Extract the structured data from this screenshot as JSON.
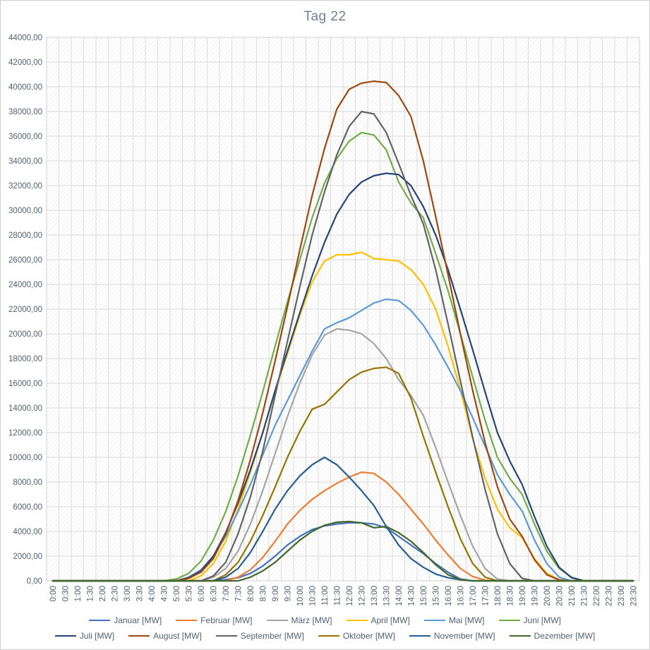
{
  "chart": {
    "title_label": "Tag 22"
  },
  "chart_data": {
    "type": "line",
    "title": "Tag 22",
    "xlabel": "",
    "ylabel": "",
    "ylim": [
      0,
      44000
    ],
    "ytick_step": 2000,
    "grid": true,
    "legend_position": "bottom",
    "yticks": [
      "0,00",
      "2000,00",
      "4000,00",
      "6000,00",
      "8000,00",
      "10000,00",
      "12000,00",
      "14000,00",
      "16000,00",
      "18000,00",
      "20000,00",
      "22000,00",
      "24000,00",
      "26000,00",
      "28000,00",
      "30000,00",
      "32000,00",
      "34000,00",
      "36000,00",
      "38000,00",
      "40000,00",
      "42000,00",
      "44000,00"
    ],
    "x": [
      "0:00",
      "0:30",
      "1:00",
      "1:30",
      "2:00",
      "2:30",
      "3:00",
      "3:30",
      "4:00",
      "4:30",
      "5:00",
      "5:30",
      "6:00",
      "6:30",
      "7:00",
      "7:30",
      "8:00",
      "8:30",
      "9:00",
      "9:30",
      "10:00",
      "10:30",
      "11:00",
      "11:30",
      "12:00",
      "12:30",
      "13:00",
      "13:30",
      "14:00",
      "14:30",
      "15:00",
      "15:30",
      "16:00",
      "16:30",
      "17:00",
      "17:30",
      "18:00",
      "18:30",
      "19:00",
      "19:30",
      "20:00",
      "20:30",
      "21:00",
      "21:30",
      "22:00",
      "22:30",
      "23:00",
      "23:30"
    ],
    "series": [
      {
        "name": "Januar [MW]",
        "color": "#4472C4",
        "values": [
          0,
          0,
          0,
          0,
          0,
          0,
          0,
          0,
          0,
          0,
          0,
          0,
          0,
          0,
          100,
          250,
          600,
          1200,
          2000,
          2900,
          3600,
          4150,
          4450,
          4600,
          4700,
          4700,
          4600,
          4300,
          3600,
          2900,
          2200,
          1400,
          700,
          150,
          0,
          0,
          0,
          0,
          0,
          0,
          0,
          0,
          0,
          0,
          0,
          0,
          0,
          0
        ]
      },
      {
        "name": "Februar [MW]",
        "color": "#ED7D31",
        "values": [
          0,
          0,
          0,
          0,
          0,
          0,
          0,
          0,
          0,
          0,
          0,
          0,
          0,
          0,
          0,
          300,
          900,
          1900,
          3200,
          4600,
          5700,
          6600,
          7300,
          7900,
          8400,
          8800,
          8700,
          8000,
          7000,
          5800,
          4600,
          3300,
          2100,
          1000,
          350,
          50,
          0,
          0,
          0,
          0,
          0,
          0,
          0,
          0,
          0,
          0,
          0,
          0
        ]
      },
      {
        "name": "März [MW]",
        "color": "#A5A5A5",
        "values": [
          0,
          0,
          0,
          0,
          0,
          0,
          0,
          0,
          0,
          0,
          0,
          0,
          0,
          300,
          1000,
          2400,
          4600,
          7300,
          10300,
          13300,
          16000,
          18300,
          19900,
          20400,
          20300,
          20000,
          19200,
          18000,
          16300,
          15000,
          13400,
          10800,
          8000,
          5300,
          2800,
          1000,
          150,
          0,
          0,
          0,
          0,
          0,
          0,
          0,
          0,
          0,
          0,
          0
        ]
      },
      {
        "name": "April [MW]",
        "color": "#FFC000",
        "values": [
          0,
          0,
          0,
          0,
          0,
          0,
          0,
          0,
          0,
          0,
          0,
          0,
          400,
          1400,
          3200,
          5800,
          8800,
          12000,
          15400,
          18400,
          21500,
          24200,
          25900,
          26400,
          26400,
          26600,
          26100,
          26000,
          25900,
          25200,
          24000,
          22000,
          19000,
          15500,
          11500,
          8300,
          5800,
          4300,
          3500,
          1800,
          600,
          100,
          0,
          0,
          0,
          0,
          0,
          0
        ]
      },
      {
        "name": "Mai [MW]",
        "color": "#5B9BD5",
        "values": [
          0,
          0,
          0,
          0,
          0,
          0,
          0,
          0,
          0,
          0,
          0,
          300,
          900,
          2000,
          3600,
          5600,
          7800,
          10200,
          12600,
          14600,
          16600,
          18600,
          20400,
          20900,
          21300,
          21900,
          22500,
          22800,
          22700,
          21900,
          20700,
          19100,
          17300,
          15400,
          13200,
          10900,
          8600,
          7000,
          5650,
          3300,
          1400,
          300,
          0,
          0,
          0,
          0,
          0,
          0
        ]
      },
      {
        "name": "Juni [MW]",
        "color": "#70AD47",
        "values": [
          0,
          0,
          0,
          0,
          0,
          0,
          0,
          0,
          0,
          0,
          150,
          600,
          1600,
          3300,
          5600,
          8500,
          11800,
          15300,
          19000,
          22600,
          26000,
          29400,
          32200,
          34200,
          35600,
          36300,
          36100,
          34900,
          32300,
          30600,
          29400,
          26500,
          23500,
          20000,
          16500,
          13000,
          10000,
          8300,
          7000,
          4600,
          2400,
          1000,
          300,
          0,
          0,
          0,
          0,
          0
        ]
      },
      {
        "name": "Juli [MW]",
        "color": "#264478",
        "values": [
          0,
          0,
          0,
          0,
          0,
          0,
          0,
          0,
          0,
          0,
          0,
          250,
          800,
          2000,
          3900,
          6300,
          9000,
          12000,
          15400,
          18600,
          21700,
          24700,
          27400,
          29700,
          31300,
          32300,
          32800,
          33000,
          32900,
          32000,
          30300,
          28000,
          25200,
          22000,
          18700,
          15300,
          12000,
          9700,
          7800,
          5200,
          2800,
          1100,
          250,
          0,
          0,
          0,
          0,
          0
        ]
      },
      {
        "name": "August [MW]",
        "color": "#9E480E",
        "values": [
          0,
          0,
          0,
          0,
          0,
          0,
          0,
          0,
          0,
          0,
          0,
          200,
          700,
          1800,
          3800,
          6500,
          9800,
          13600,
          17800,
          22200,
          26800,
          31200,
          35000,
          38200,
          39800,
          40300,
          40450,
          40350,
          39300,
          37600,
          34000,
          29500,
          24800,
          20000,
          15400,
          11200,
          7600,
          5000,
          3600,
          1700,
          500,
          80,
          0,
          0,
          0,
          0,
          0,
          0
        ]
      },
      {
        "name": "September [MW]",
        "color": "#636363",
        "values": [
          0,
          0,
          0,
          0,
          0,
          0,
          0,
          0,
          0,
          0,
          0,
          0,
          0,
          400,
          1500,
          3800,
          6800,
          10500,
          15000,
          19400,
          23800,
          28000,
          31500,
          34500,
          36800,
          38000,
          37800,
          36300,
          33800,
          31200,
          28900,
          25200,
          20800,
          16200,
          11600,
          7400,
          3800,
          1400,
          200,
          0,
          0,
          0,
          0,
          0,
          0,
          0,
          0,
          0
        ]
      },
      {
        "name": "Oktober [MW]",
        "color": "#997300",
        "values": [
          0,
          0,
          0,
          0,
          0,
          0,
          0,
          0,
          0,
          0,
          0,
          0,
          0,
          0,
          500,
          1500,
          3200,
          5300,
          7600,
          10000,
          12100,
          13900,
          14300,
          15300,
          16300,
          16900,
          17200,
          17300,
          16800,
          14800,
          11700,
          8800,
          6000,
          3400,
          1400,
          300,
          0,
          0,
          0,
          0,
          0,
          0,
          0,
          0,
          0,
          0,
          0,
          0
        ]
      },
      {
        "name": "November [MW]",
        "color": "#255E91",
        "values": [
          0,
          0,
          0,
          0,
          0,
          0,
          0,
          0,
          0,
          0,
          0,
          0,
          0,
          0,
          300,
          1000,
          2300,
          4000,
          5800,
          7300,
          8500,
          9400,
          10000,
          9400,
          8400,
          7300,
          6100,
          4400,
          2900,
          1800,
          1100,
          550,
          250,
          80,
          0,
          0,
          0,
          0,
          0,
          0,
          0,
          0,
          0,
          0,
          0,
          0,
          0,
          0
        ]
      },
      {
        "name": "Dezember [MW]",
        "color": "#43682B",
        "values": [
          0,
          0,
          0,
          0,
          0,
          0,
          0,
          0,
          0,
          0,
          0,
          0,
          0,
          0,
          0,
          0,
          300,
          800,
          1500,
          2400,
          3300,
          4000,
          4500,
          4750,
          4800,
          4700,
          4300,
          4400,
          3900,
          3200,
          2300,
          1300,
          500,
          100,
          0,
          0,
          0,
          0,
          0,
          0,
          0,
          0,
          0,
          0,
          0,
          0,
          0,
          0
        ]
      }
    ]
  }
}
